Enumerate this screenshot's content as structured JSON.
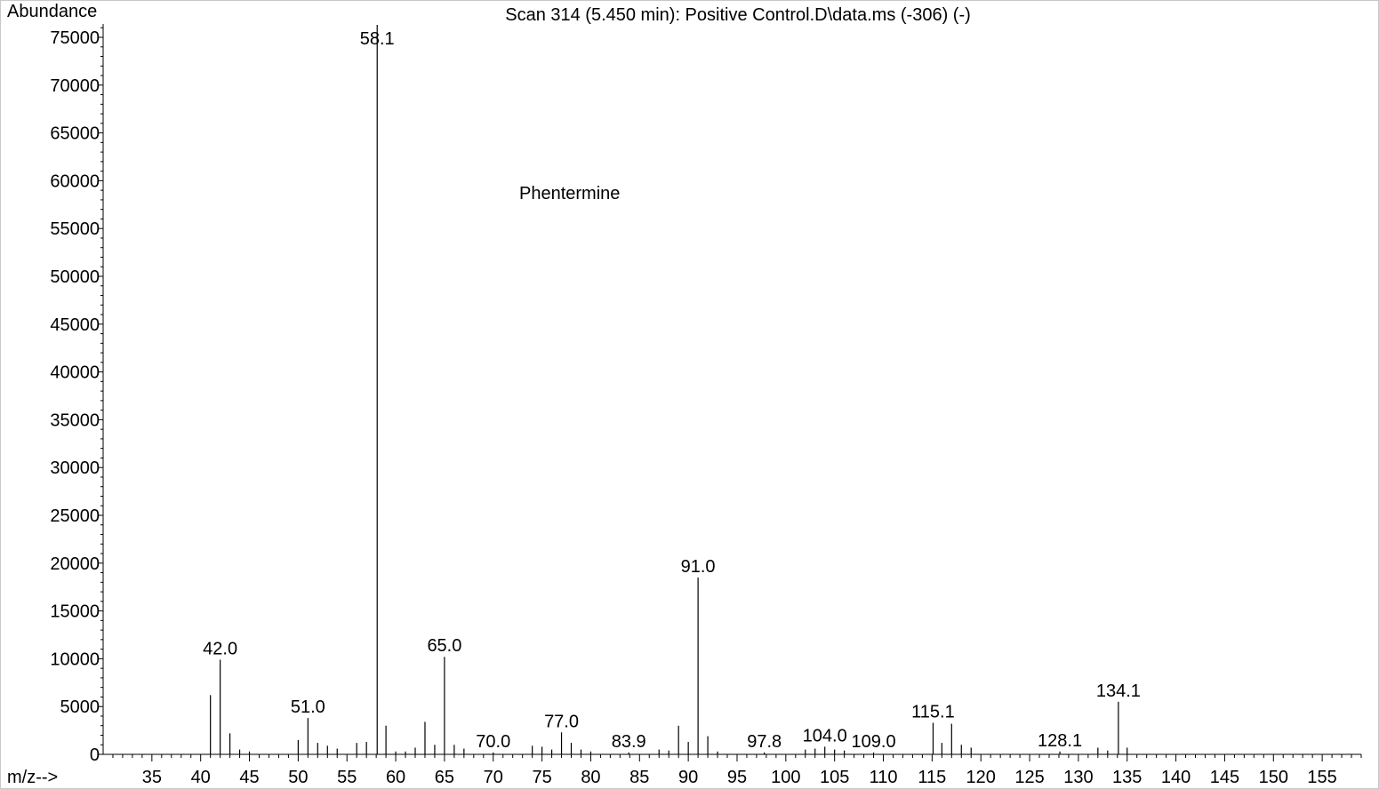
{
  "chart_data": {
    "type": "bar",
    "title": "Scan 314 (5.450 min): Positive Control.D\\data.ms (-306) (-)",
    "ylabel": "Abundance",
    "xlabel": "m/z-->",
    "annotation": "Phentermine",
    "xlim": [
      30,
      159
    ],
    "ylim": [
      0,
      76500
    ],
    "grid": false,
    "legend": "none",
    "x_ticks": [
      35,
      40,
      45,
      50,
      55,
      60,
      65,
      70,
      75,
      80,
      85,
      90,
      95,
      100,
      105,
      110,
      115,
      120,
      125,
      130,
      135,
      140,
      145,
      150,
      155
    ],
    "y_ticks": [
      0,
      5000,
      10000,
      15000,
      20000,
      25000,
      30000,
      35000,
      40000,
      45000,
      50000,
      55000,
      60000,
      65000,
      70000,
      75000
    ],
    "peaks": [
      {
        "mz": 41.0,
        "abundance": 6200
      },
      {
        "mz": 42.0,
        "abundance": 9900
      },
      {
        "mz": 43.0,
        "abundance": 2200
      },
      {
        "mz": 44.0,
        "abundance": 500
      },
      {
        "mz": 45.0,
        "abundance": 300
      },
      {
        "mz": 50.0,
        "abundance": 1500
      },
      {
        "mz": 51.0,
        "abundance": 3800
      },
      {
        "mz": 52.0,
        "abundance": 1200
      },
      {
        "mz": 53.0,
        "abundance": 900
      },
      {
        "mz": 54.0,
        "abundance": 600
      },
      {
        "mz": 56.0,
        "abundance": 1200
      },
      {
        "mz": 57.0,
        "abundance": 1300
      },
      {
        "mz": 58.1,
        "abundance": 76300
      },
      {
        "mz": 59.0,
        "abundance": 3000
      },
      {
        "mz": 60.0,
        "abundance": 300
      },
      {
        "mz": 61.0,
        "abundance": 300
      },
      {
        "mz": 62.0,
        "abundance": 700
      },
      {
        "mz": 63.0,
        "abundance": 3400
      },
      {
        "mz": 64.0,
        "abundance": 1000
      },
      {
        "mz": 65.0,
        "abundance": 10200
      },
      {
        "mz": 66.0,
        "abundance": 1000
      },
      {
        "mz": 67.0,
        "abundance": 600
      },
      {
        "mz": 70.0,
        "abundance": 200
      },
      {
        "mz": 74.0,
        "abundance": 900
      },
      {
        "mz": 75.0,
        "abundance": 800
      },
      {
        "mz": 76.0,
        "abundance": 500
      },
      {
        "mz": 77.0,
        "abundance": 2300
      },
      {
        "mz": 78.0,
        "abundance": 1200
      },
      {
        "mz": 79.0,
        "abundance": 500
      },
      {
        "mz": 80.0,
        "abundance": 300
      },
      {
        "mz": 83.9,
        "abundance": 200
      },
      {
        "mz": 87.0,
        "abundance": 500
      },
      {
        "mz": 88.0,
        "abundance": 400
      },
      {
        "mz": 89.0,
        "abundance": 3000
      },
      {
        "mz": 90.0,
        "abundance": 1300
      },
      {
        "mz": 91.0,
        "abundance": 18500
      },
      {
        "mz": 92.0,
        "abundance": 1900
      },
      {
        "mz": 93.0,
        "abundance": 300
      },
      {
        "mz": 97.8,
        "abundance": 200
      },
      {
        "mz": 102.0,
        "abundance": 500
      },
      {
        "mz": 103.0,
        "abundance": 600
      },
      {
        "mz": 104.0,
        "abundance": 800
      },
      {
        "mz": 105.0,
        "abundance": 500
      },
      {
        "mz": 106.0,
        "abundance": 400
      },
      {
        "mz": 109.0,
        "abundance": 200
      },
      {
        "mz": 115.1,
        "abundance": 3300
      },
      {
        "mz": 116.0,
        "abundance": 1200
      },
      {
        "mz": 117.0,
        "abundance": 3200
      },
      {
        "mz": 118.0,
        "abundance": 1000
      },
      {
        "mz": 119.0,
        "abundance": 700
      },
      {
        "mz": 128.1,
        "abundance": 300
      },
      {
        "mz": 132.0,
        "abundance": 700
      },
      {
        "mz": 133.0,
        "abundance": 400
      },
      {
        "mz": 134.1,
        "abundance": 5500
      },
      {
        "mz": 135.0,
        "abundance": 700
      }
    ],
    "peak_labels": [
      "42.0",
      "51.0",
      "58.1",
      "65.0",
      "70.0",
      "77.0",
      "83.9",
      "91.0",
      "97.8",
      "104.0",
      "109.0",
      "115.1",
      "128.1",
      "134.1"
    ]
  }
}
